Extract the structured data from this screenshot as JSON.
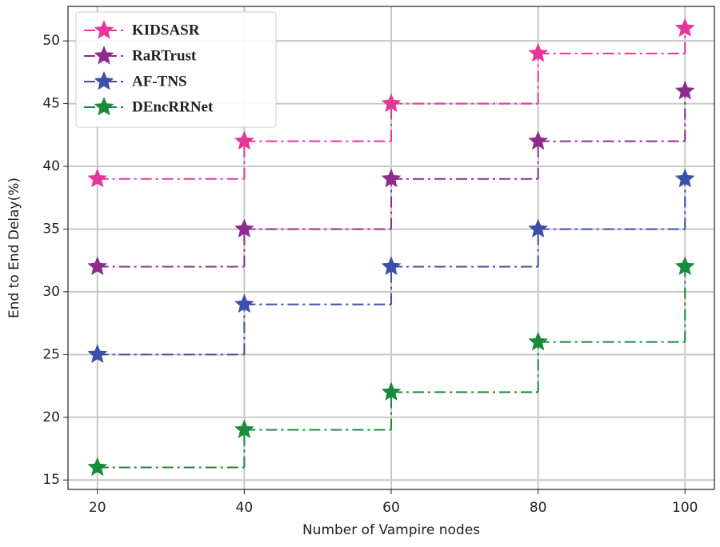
{
  "chart_data": {
    "type": "step",
    "xlabel": "Number of Vampire nodes",
    "ylabel": "End to End Delay(%)",
    "x": [
      20,
      40,
      60,
      80,
      100
    ],
    "series": [
      {
        "name": "KIDSASR",
        "color": "#e8359a",
        "values": [
          39,
          42,
          45,
          49,
          51
        ]
      },
      {
        "name": "RaRTrust",
        "color": "#8e2c8e",
        "values": [
          32,
          35,
          39,
          42,
          46
        ]
      },
      {
        "name": "AF-TNS",
        "color": "#3b4fab",
        "values": [
          25,
          29,
          32,
          35,
          39
        ]
      },
      {
        "name": "DEncRRNet",
        "color": "#1a8a3c",
        "values": [
          16,
          19,
          22,
          26,
          32
        ]
      }
    ],
    "xlim": [
      16,
      104
    ],
    "xticks": [
      20,
      40,
      60,
      80,
      100
    ],
    "ylim": [
      14.25,
      52.75
    ],
    "yticks": [
      15,
      20,
      25,
      30,
      35,
      40,
      45,
      50
    ],
    "grid": true,
    "legend": "upper left"
  }
}
